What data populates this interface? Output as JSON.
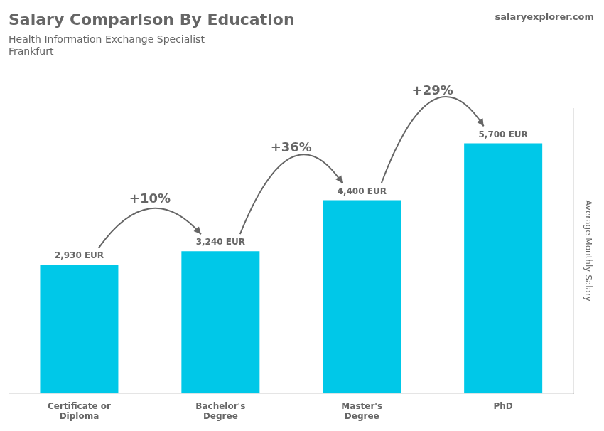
{
  "chart_data": {
    "type": "bar",
    "title": "Salary Comparison By Education",
    "subtitle": [
      "Health Information Exchange Specialist",
      "Frankfurt"
    ],
    "caption": "salaryexplorer.com",
    "ylabel": "Average Monthly Salary",
    "categories": [
      "Certificate or\nDiploma",
      "Bachelor's\nDegree",
      "Master's\nDegree",
      "PhD"
    ],
    "values": [
      2930,
      3240,
      4400,
      5700
    ],
    "value_labels": [
      "2,930 EUR",
      "3,240 EUR",
      "4,400 EUR",
      "5,700 EUR"
    ],
    "data_labels": true,
    "annotations": [
      "+10%",
      "+36%",
      "+29%"
    ],
    "color": "#00C8E8",
    "ylim": [
      0,
      6500
    ],
    "grid": false,
    "legend": false,
    "tick_labels": "x"
  }
}
